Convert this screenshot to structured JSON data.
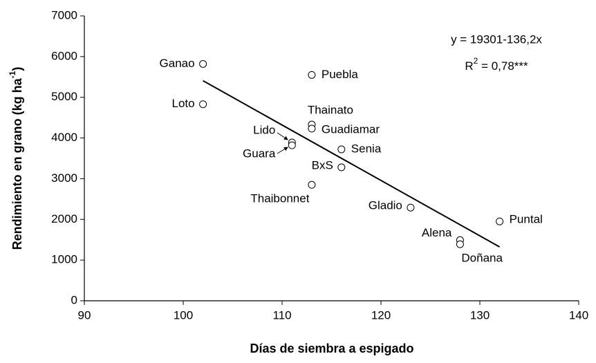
{
  "chart_data": {
    "type": "scatter",
    "x_label": "Días de siembra a espigado",
    "y_label": {
      "text": "Rendimiento en grano (kg ha",
      "sup": "-1",
      "end": ")"
    },
    "equation": "y = 19301-136,2x",
    "r_squared": {
      "base": "R",
      "sup": "2",
      "rest": " = 0,78***"
    },
    "labels": [
      "Ganao",
      "Loto",
      "Puebla",
      "Thainato",
      "Guadiamar",
      "Lido",
      "Guara",
      "Senia",
      "BxS",
      "Thaibonnet",
      "Gladio",
      "Puntal",
      "Alena",
      "Doñana"
    ],
    "x": [
      102,
      102,
      113,
      113,
      113,
      111,
      111,
      116,
      116,
      113,
      123,
      132,
      128,
      128
    ],
    "values": [
      5820,
      4830,
      5550,
      4330,
      4230,
      3890,
      3820,
      3720,
      3280,
      2850,
      2290,
      1950,
      1490,
      1390
    ],
    "fit": {
      "x": [
        102,
        132
      ],
      "y": [
        5408,
        1323
      ]
    },
    "xlim": [
      90,
      140
    ],
    "xticks": [
      90,
      100,
      110,
      120,
      130,
      140
    ],
    "ylim": [
      0,
      7000
    ],
    "yticks": [
      0,
      1000,
      2000,
      3000,
      4000,
      5000,
      6000,
      7000
    ]
  }
}
